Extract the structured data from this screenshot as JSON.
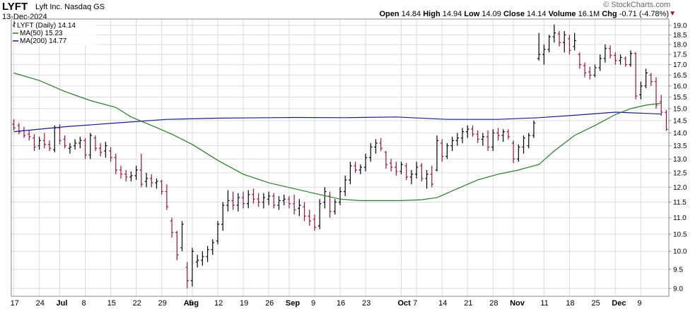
{
  "header": {
    "ticker": "LYFT",
    "company": "Lyft Inc. Nasdaq GS",
    "date": "13-Dec-2024",
    "copyright": "© StockCharts.com",
    "open_label": "Open",
    "open_value": "14.84",
    "high_label": "High",
    "high_value": "14.94",
    "low_label": "Low",
    "low_value": "14.09",
    "close_label": "Close",
    "close_value": "14.14",
    "volume_label": "Volume",
    "volume_value": "16.1M",
    "chg_label": "Chg",
    "chg_value": "-0.71 (-4.78%)",
    "chg_arrow": "▼"
  },
  "legend": {
    "price": "LYFT (Daily) 14.14",
    "ma50": "MA(50) 15.23",
    "ma200": "MA(200) 14.77"
  },
  "colors": {
    "up": "#000000",
    "down": "#a0103b",
    "ma50": "#2a7d2a",
    "ma200": "#1a1a8c",
    "grid": "#dcdcdc"
  },
  "chart_data": {
    "type": "line",
    "scale": "log",
    "grid": true,
    "ylim": [
      8.8,
      19.35
    ],
    "yticks": [
      "9.0",
      "9.5",
      "10.0",
      "10.5",
      "11.0",
      "11.5",
      "12.0",
      "12.5",
      "13.0",
      "13.5",
      "14.0",
      "14.5",
      "15.0",
      "15.5",
      "16.0",
      "16.5",
      "17.0",
      "17.5",
      "18.0",
      "18.5",
      "19.0"
    ],
    "xticks": [
      {
        "label": "17",
        "bar": 0
      },
      {
        "label": "24",
        "bar": 5
      },
      {
        "label": "Jul",
        "bar": 9
      },
      {
        "label": "8",
        "bar": 14
      },
      {
        "label": "15",
        "bar": 19
      },
      {
        "label": "22",
        "bar": 24
      },
      {
        "label": "29",
        "bar": 29
      },
      {
        "label": "Aug",
        "bar": 34
      },
      {
        "label": "5",
        "bar": 35
      },
      {
        "label": "12",
        "bar": 40
      },
      {
        "label": "19",
        "bar": 45
      },
      {
        "label": "26",
        "bar": 50
      },
      {
        "label": "Sep",
        "bar": 54
      },
      {
        "label": "9",
        "bar": 59
      },
      {
        "label": "16",
        "bar": 64
      },
      {
        "label": "23",
        "bar": 69
      },
      {
        "label": "Oct",
        "bar": 76
      },
      {
        "label": "7",
        "bar": 79
      },
      {
        "label": "14",
        "bar": 84
      },
      {
        "label": "21",
        "bar": 89
      },
      {
        "label": "28",
        "bar": 94
      },
      {
        "label": "Nov",
        "bar": 98
      },
      {
        "label": "11",
        "bar": 104
      },
      {
        "label": "18",
        "bar": 109
      },
      {
        "label": "25",
        "bar": 114
      },
      {
        "label": "Dec",
        "bar": 118
      },
      {
        "label": "9",
        "bar": 123
      }
    ],
    "bars": [
      {
        "o": 14.35,
        "h": 14.55,
        "l": 14.1,
        "c": 14.2
      },
      {
        "o": 14.3,
        "h": 14.4,
        "l": 13.95,
        "c": 14.05
      },
      {
        "o": 14.1,
        "h": 14.25,
        "l": 13.8,
        "c": 13.9
      },
      {
        "o": 13.95,
        "h": 14.1,
        "l": 13.7,
        "c": 13.85
      },
      {
        "o": 13.8,
        "h": 13.95,
        "l": 13.3,
        "c": 13.45
      },
      {
        "o": 13.5,
        "h": 13.85,
        "l": 13.35,
        "c": 13.7
      },
      {
        "o": 13.7,
        "h": 14.0,
        "l": 13.4,
        "c": 13.55
      },
      {
        "o": 13.55,
        "h": 13.7,
        "l": 13.3,
        "c": 13.4
      },
      {
        "o": 13.35,
        "h": 14.3,
        "l": 13.25,
        "c": 14.2
      },
      {
        "o": 14.2,
        "h": 14.35,
        "l": 13.55,
        "c": 13.7
      },
      {
        "o": 13.75,
        "h": 13.9,
        "l": 13.4,
        "c": 13.5
      },
      {
        "o": 13.4,
        "h": 13.6,
        "l": 13.2,
        "c": 13.45
      },
      {
        "o": 13.5,
        "h": 13.75,
        "l": 13.35,
        "c": 13.6
      },
      {
        "o": 13.6,
        "h": 13.85,
        "l": 13.4,
        "c": 13.7
      },
      {
        "o": 13.7,
        "h": 13.8,
        "l": 13.0,
        "c": 13.15
      },
      {
        "o": 13.15,
        "h": 14.0,
        "l": 13.0,
        "c": 13.9
      },
      {
        "o": 13.8,
        "h": 13.9,
        "l": 13.3,
        "c": 13.4
      },
      {
        "o": 13.4,
        "h": 13.6,
        "l": 13.1,
        "c": 13.25
      },
      {
        "o": 13.3,
        "h": 13.65,
        "l": 13.05,
        "c": 13.5
      },
      {
        "o": 13.3,
        "h": 13.45,
        "l": 12.9,
        "c": 13.05
      },
      {
        "o": 13.05,
        "h": 13.2,
        "l": 12.45,
        "c": 12.6
      },
      {
        "o": 12.6,
        "h": 12.75,
        "l": 12.3,
        "c": 12.45
      },
      {
        "o": 12.45,
        "h": 12.6,
        "l": 12.2,
        "c": 12.35
      },
      {
        "o": 12.35,
        "h": 12.55,
        "l": 12.2,
        "c": 12.4
      },
      {
        "o": 12.4,
        "h": 12.75,
        "l": 12.25,
        "c": 12.6
      },
      {
        "o": 12.6,
        "h": 13.2,
        "l": 12.0,
        "c": 12.1
      },
      {
        "o": 12.2,
        "h": 12.5,
        "l": 12.0,
        "c": 12.3
      },
      {
        "o": 12.3,
        "h": 12.45,
        "l": 12.0,
        "c": 12.15
      },
      {
        "o": 12.15,
        "h": 12.3,
        "l": 11.95,
        "c": 12.2
      },
      {
        "o": 12.2,
        "h": 12.25,
        "l": 11.75,
        "c": 11.85
      },
      {
        "o": 11.85,
        "h": 12.1,
        "l": 11.25,
        "c": 11.35
      },
      {
        "o": 10.9,
        "h": 11.0,
        "l": 10.4,
        "c": 10.55
      },
      {
        "o": 10.55,
        "h": 10.6,
        "l": 9.75,
        "c": 9.9
      },
      {
        "o": 10.1,
        "h": 10.9,
        "l": 10.0,
        "c": 10.8
      },
      {
        "o": 9.55,
        "h": 9.7,
        "l": 9.0,
        "c": 9.2
      },
      {
        "o": 9.2,
        "h": 10.1,
        "l": 9.05,
        "c": 10.0
      },
      {
        "o": 9.7,
        "h": 9.9,
        "l": 9.55,
        "c": 9.75
      },
      {
        "o": 9.75,
        "h": 10.0,
        "l": 9.6,
        "c": 9.85
      },
      {
        "o": 9.85,
        "h": 10.15,
        "l": 9.7,
        "c": 10.05
      },
      {
        "o": 10.05,
        "h": 10.35,
        "l": 9.9,
        "c": 10.25
      },
      {
        "o": 10.3,
        "h": 10.9,
        "l": 10.2,
        "c": 10.8
      },
      {
        "o": 10.8,
        "h": 11.5,
        "l": 10.6,
        "c": 11.4
      },
      {
        "o": 11.4,
        "h": 11.9,
        "l": 11.2,
        "c": 11.55
      },
      {
        "o": 11.55,
        "h": 11.85,
        "l": 11.25,
        "c": 11.4
      },
      {
        "o": 11.4,
        "h": 11.8,
        "l": 11.2,
        "c": 11.65
      },
      {
        "o": 11.65,
        "h": 11.85,
        "l": 11.3,
        "c": 11.45
      },
      {
        "o": 11.45,
        "h": 11.9,
        "l": 11.3,
        "c": 11.75
      },
      {
        "o": 11.75,
        "h": 11.95,
        "l": 11.45,
        "c": 11.6
      },
      {
        "o": 11.6,
        "h": 11.8,
        "l": 11.35,
        "c": 11.5
      },
      {
        "o": 11.5,
        "h": 11.8,
        "l": 11.3,
        "c": 11.65
      },
      {
        "o": 11.6,
        "h": 11.85,
        "l": 11.4,
        "c": 11.7
      },
      {
        "o": 11.7,
        "h": 11.8,
        "l": 11.3,
        "c": 11.4
      },
      {
        "o": 11.4,
        "h": 11.7,
        "l": 11.25,
        "c": 11.55
      },
      {
        "o": 11.55,
        "h": 11.75,
        "l": 11.4,
        "c": 11.6
      },
      {
        "o": 11.6,
        "h": 11.7,
        "l": 11.3,
        "c": 11.45
      },
      {
        "o": 11.45,
        "h": 11.75,
        "l": 11.1,
        "c": 11.25
      },
      {
        "o": 11.3,
        "h": 11.6,
        "l": 11.05,
        "c": 11.4
      },
      {
        "o": 11.35,
        "h": 11.5,
        "l": 10.9,
        "c": 11.05
      },
      {
        "o": 11.05,
        "h": 11.25,
        "l": 10.75,
        "c": 10.9
      },
      {
        "o": 10.95,
        "h": 11.1,
        "l": 10.6,
        "c": 10.7
      },
      {
        "o": 10.75,
        "h": 11.6,
        "l": 10.65,
        "c": 11.45
      },
      {
        "o": 11.5,
        "h": 12.0,
        "l": 11.3,
        "c": 11.85
      },
      {
        "o": 11.7,
        "h": 11.85,
        "l": 11.0,
        "c": 11.2
      },
      {
        "o": 11.2,
        "h": 11.6,
        "l": 11.1,
        "c": 11.5
      },
      {
        "o": 11.5,
        "h": 12.0,
        "l": 11.4,
        "c": 11.85
      },
      {
        "o": 11.85,
        "h": 12.4,
        "l": 11.7,
        "c": 12.25
      },
      {
        "o": 12.25,
        "h": 12.9,
        "l": 12.1,
        "c": 12.75
      },
      {
        "o": 12.75,
        "h": 12.9,
        "l": 12.5,
        "c": 12.6
      },
      {
        "o": 12.6,
        "h": 12.8,
        "l": 12.45,
        "c": 12.7
      },
      {
        "o": 12.7,
        "h": 13.2,
        "l": 12.55,
        "c": 13.05
      },
      {
        "o": 13.05,
        "h": 13.6,
        "l": 12.9,
        "c": 13.45
      },
      {
        "o": 13.45,
        "h": 13.75,
        "l": 13.2,
        "c": 13.6
      },
      {
        "o": 13.6,
        "h": 13.8,
        "l": 13.3,
        "c": 13.4
      },
      {
        "o": 13.25,
        "h": 13.3,
        "l": 12.65,
        "c": 12.8
      },
      {
        "o": 12.85,
        "h": 13.0,
        "l": 12.55,
        "c": 12.7
      },
      {
        "o": 12.7,
        "h": 12.9,
        "l": 12.4,
        "c": 12.55
      },
      {
        "o": 12.55,
        "h": 12.9,
        "l": 12.45,
        "c": 12.8
      },
      {
        "o": 12.75,
        "h": 12.85,
        "l": 12.25,
        "c": 12.35
      },
      {
        "o": 12.35,
        "h": 12.6,
        "l": 12.1,
        "c": 12.45
      },
      {
        "o": 12.45,
        "h": 12.9,
        "l": 12.3,
        "c": 12.7
      },
      {
        "o": 12.75,
        "h": 12.85,
        "l": 12.2,
        "c": 12.3
      },
      {
        "o": 12.3,
        "h": 12.6,
        "l": 11.95,
        "c": 12.45
      },
      {
        "o": 12.45,
        "h": 12.75,
        "l": 12.0,
        "c": 12.1
      },
      {
        "o": 12.6,
        "h": 13.9,
        "l": 12.55,
        "c": 13.7
      },
      {
        "o": 13.6,
        "h": 13.75,
        "l": 12.9,
        "c": 13.1
      },
      {
        "o": 13.1,
        "h": 13.6,
        "l": 13.0,
        "c": 13.5
      },
      {
        "o": 13.5,
        "h": 13.85,
        "l": 13.3,
        "c": 13.7
      },
      {
        "o": 13.7,
        "h": 14.0,
        "l": 13.5,
        "c": 13.8
      },
      {
        "o": 13.8,
        "h": 14.2,
        "l": 13.6,
        "c": 14.05
      },
      {
        "o": 14.05,
        "h": 14.3,
        "l": 13.8,
        "c": 14.15
      },
      {
        "o": 14.15,
        "h": 14.3,
        "l": 13.85,
        "c": 13.95
      },
      {
        "o": 13.95,
        "h": 14.1,
        "l": 13.6,
        "c": 13.75
      },
      {
        "o": 13.75,
        "h": 14.0,
        "l": 13.5,
        "c": 13.85
      },
      {
        "o": 13.85,
        "h": 14.1,
        "l": 13.3,
        "c": 13.45
      },
      {
        "o": 13.45,
        "h": 14.15,
        "l": 13.3,
        "c": 14.0
      },
      {
        "o": 14.0,
        "h": 14.2,
        "l": 13.7,
        "c": 13.9
      },
      {
        "o": 13.9,
        "h": 14.15,
        "l": 13.65,
        "c": 14.05
      },
      {
        "o": 14.05,
        "h": 14.15,
        "l": 13.75,
        "c": 13.85
      },
      {
        "o": 13.6,
        "h": 13.7,
        "l": 12.85,
        "c": 13.0
      },
      {
        "o": 13.0,
        "h": 13.55,
        "l": 12.9,
        "c": 13.45
      },
      {
        "o": 13.45,
        "h": 13.9,
        "l": 13.2,
        "c": 13.8
      },
      {
        "o": 13.5,
        "h": 14.0,
        "l": 13.4,
        "c": 13.9
      },
      {
        "o": 13.9,
        "h": 14.5,
        "l": 13.8,
        "c": 14.4
      },
      {
        "o": 17.3,
        "h": 18.6,
        "l": 17.2,
        "c": 17.5
      },
      {
        "o": 17.5,
        "h": 18.0,
        "l": 17.0,
        "c": 17.75
      },
      {
        "o": 17.75,
        "h": 18.5,
        "l": 17.6,
        "c": 18.4
      },
      {
        "o": 18.4,
        "h": 19.05,
        "l": 18.1,
        "c": 18.6
      },
      {
        "o": 18.55,
        "h": 18.7,
        "l": 17.9,
        "c": 18.1
      },
      {
        "o": 18.1,
        "h": 18.7,
        "l": 17.6,
        "c": 18.5
      },
      {
        "o": 18.3,
        "h": 18.5,
        "l": 17.5,
        "c": 17.7
      },
      {
        "o": 17.9,
        "h": 18.6,
        "l": 17.7,
        "c": 18.2
      },
      {
        "o": 17.5,
        "h": 17.6,
        "l": 16.8,
        "c": 17.0
      },
      {
        "o": 16.95,
        "h": 17.1,
        "l": 16.4,
        "c": 16.6
      },
      {
        "o": 16.65,
        "h": 16.9,
        "l": 16.3,
        "c": 16.5
      },
      {
        "o": 16.5,
        "h": 17.0,
        "l": 16.4,
        "c": 16.85
      },
      {
        "o": 16.85,
        "h": 17.5,
        "l": 16.7,
        "c": 17.3
      },
      {
        "o": 17.3,
        "h": 18.0,
        "l": 17.1,
        "c": 17.8
      },
      {
        "o": 17.8,
        "h": 17.95,
        "l": 17.3,
        "c": 17.45
      },
      {
        "o": 17.45,
        "h": 17.6,
        "l": 17.0,
        "c": 17.2
      },
      {
        "o": 17.2,
        "h": 17.5,
        "l": 17.0,
        "c": 17.35
      },
      {
        "o": 17.3,
        "h": 17.4,
        "l": 16.9,
        "c": 17.0
      },
      {
        "o": 17.0,
        "h": 17.7,
        "l": 16.9,
        "c": 17.55
      },
      {
        "o": 17.55,
        "h": 17.6,
        "l": 15.4,
        "c": 15.55
      },
      {
        "o": 15.6,
        "h": 16.2,
        "l": 15.4,
        "c": 16.0
      },
      {
        "o": 16.0,
        "h": 16.8,
        "l": 15.9,
        "c": 16.6
      },
      {
        "o": 16.5,
        "h": 16.6,
        "l": 16.0,
        "c": 16.2
      },
      {
        "o": 16.2,
        "h": 16.4,
        "l": 15.0,
        "c": 15.15
      },
      {
        "o": 15.3,
        "h": 15.6,
        "l": 14.7,
        "c": 14.85
      },
      {
        "o": 14.84,
        "h": 14.94,
        "l": 14.09,
        "c": 14.14
      }
    ],
    "ma50": [
      [
        0,
        16.6
      ],
      [
        5,
        16.25
      ],
      [
        10,
        15.75
      ],
      [
        15,
        15.35
      ],
      [
        20,
        15.05
      ],
      [
        23,
        14.65
      ],
      [
        27,
        14.3
      ],
      [
        31,
        13.95
      ],
      [
        35,
        13.55
      ],
      [
        40,
        12.95
      ],
      [
        45,
        12.45
      ],
      [
        50,
        12.15
      ],
      [
        55,
        11.95
      ],
      [
        60,
        11.75
      ],
      [
        64,
        11.6
      ],
      [
        68,
        11.55
      ],
      [
        72,
        11.55
      ],
      [
        76,
        11.55
      ],
      [
        80,
        11.58
      ],
      [
        83,
        11.65
      ],
      [
        87,
        11.95
      ],
      [
        91,
        12.25
      ],
      [
        95,
        12.45
      ],
      [
        99,
        12.6
      ],
      [
        103,
        12.8
      ],
      [
        106,
        13.3
      ],
      [
        110,
        13.9
      ],
      [
        114,
        14.3
      ],
      [
        118,
        14.75
      ],
      [
        121,
        15.0
      ],
      [
        124,
        15.15
      ],
      [
        127,
        15.23
      ]
    ],
    "ma200": [
      [
        0,
        14.05
      ],
      [
        10,
        14.25
      ],
      [
        20,
        14.4
      ],
      [
        30,
        14.55
      ],
      [
        40,
        14.6
      ],
      [
        55,
        14.63
      ],
      [
        65,
        14.62
      ],
      [
        75,
        14.65
      ],
      [
        85,
        14.55
      ],
      [
        95,
        14.55
      ],
      [
        103,
        14.62
      ],
      [
        110,
        14.72
      ],
      [
        118,
        14.85
      ],
      [
        124,
        14.8
      ],
      [
        127,
        14.77
      ]
    ]
  }
}
